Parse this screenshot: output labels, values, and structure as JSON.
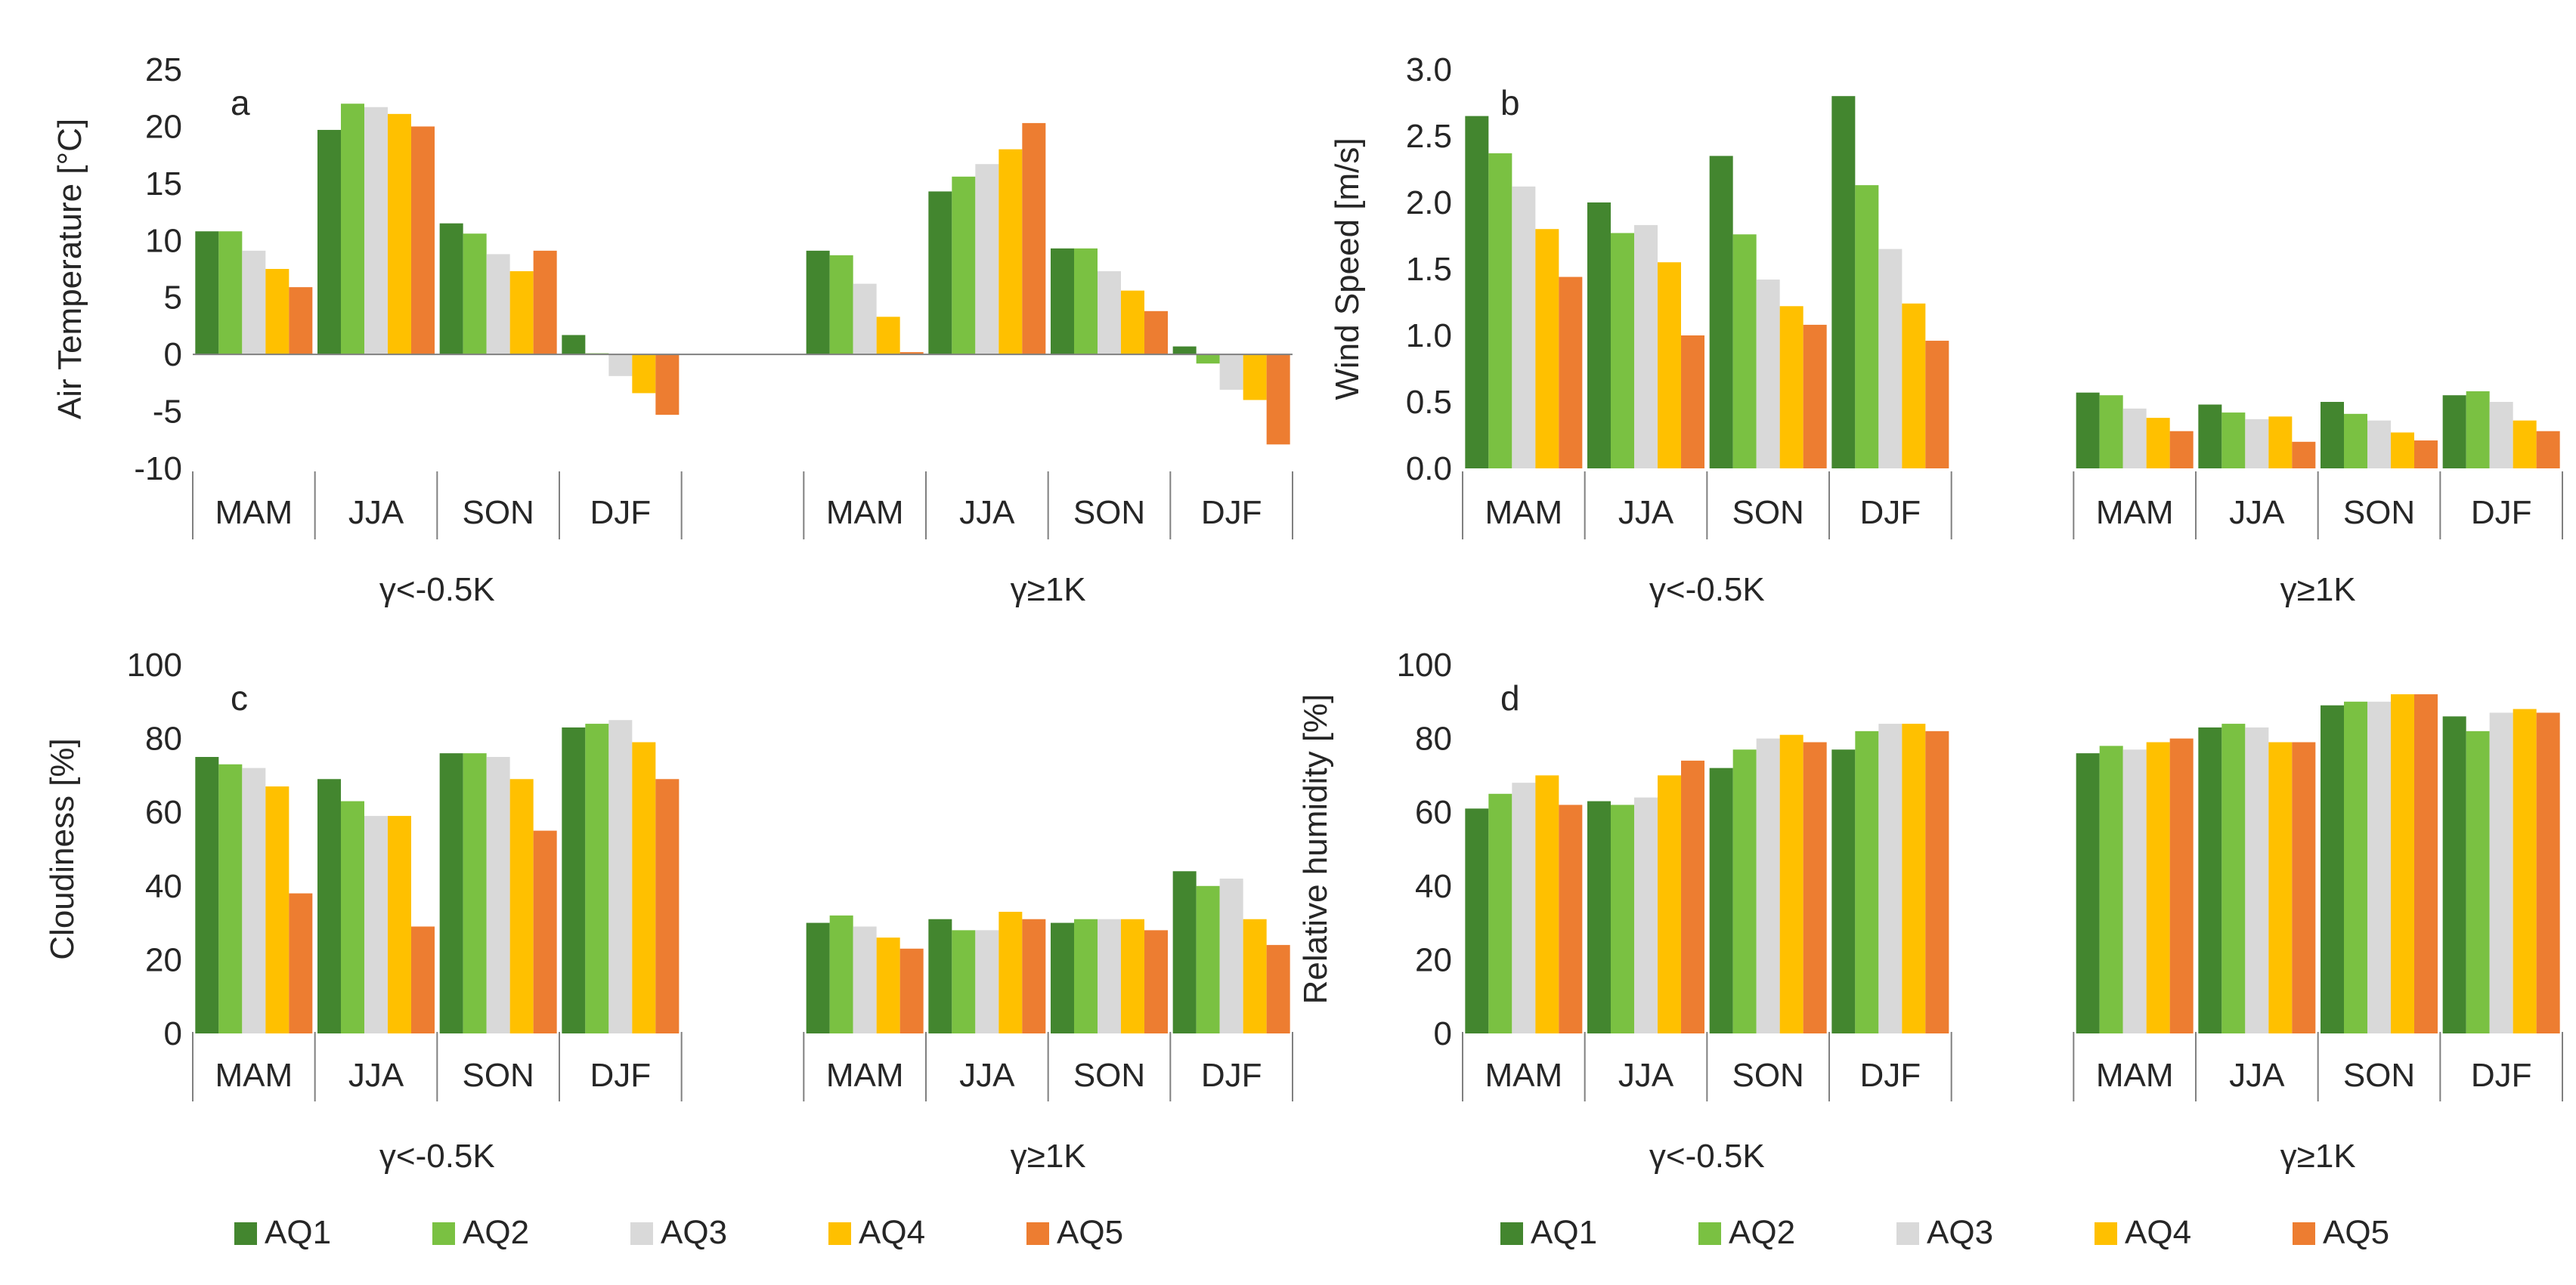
{
  "figure": {
    "groups": [
      "γ<-0.5K",
      "γ≥1K"
    ],
    "seasons": [
      "MAM",
      "JJA",
      "SON",
      "DJF"
    ],
    "series_names": [
      "AQ1",
      "AQ2",
      "AQ3",
      "AQ4",
      "AQ5"
    ],
    "colors": {
      "AQ1": "#43862f",
      "AQ2": "#7ac142",
      "AQ3": "#d9d9d9",
      "AQ4": "#ffc000",
      "AQ5": "#ed7d31",
      "axis": "#808080",
      "text": "#262626"
    },
    "legends": [
      {
        "items": [
          "AQ1",
          "AQ2",
          "AQ3",
          "AQ4",
          "AQ5"
        ]
      },
      {
        "items": [
          "AQ1",
          "AQ2",
          "AQ3",
          "AQ4",
          "AQ5"
        ]
      }
    ]
  },
  "chart_data": [
    {
      "id": "a",
      "type": "bar",
      "panel_label": "a",
      "ylabel": "Air Temperature [°C]",
      "ylim": [
        -10,
        25
      ],
      "yticks": [
        -10,
        -5,
        0,
        5,
        10,
        15,
        20,
        25
      ],
      "ytick_labels": [
        "-10",
        "-5",
        "0",
        "5",
        "10",
        "15",
        "20",
        "25"
      ],
      "categories": [
        "MAM",
        "JJA",
        "SON",
        "DJF",
        "MAM",
        "JJA",
        "SON",
        "DJF"
      ],
      "group_labels": [
        "γ<-0.5K",
        "γ≥1K"
      ],
      "series": [
        {
          "name": "AQ1",
          "values": [
            10.8,
            19.7,
            11.5,
            1.7,
            9.1,
            14.3,
            9.3,
            0.7
          ]
        },
        {
          "name": "AQ2",
          "values": [
            10.8,
            22.0,
            10.6,
            0.1,
            8.7,
            15.6,
            9.3,
            -0.8
          ]
        },
        {
          "name": "AQ3",
          "values": [
            9.1,
            21.7,
            8.8,
            -1.9,
            6.2,
            16.7,
            7.3,
            -3.1
          ]
        },
        {
          "name": "AQ4",
          "values": [
            7.5,
            21.1,
            7.3,
            -3.4,
            3.3,
            18.0,
            5.6,
            -4.0
          ]
        },
        {
          "name": "AQ5",
          "values": [
            5.9,
            20.0,
            9.1,
            -5.3,
            0.2,
            20.3,
            3.8,
            -7.9
          ]
        }
      ]
    },
    {
      "id": "b",
      "type": "bar",
      "panel_label": "b",
      "ylabel": "Wind Speed [m/s]",
      "ylim": [
        0,
        3
      ],
      "yticks": [
        0,
        0.5,
        1,
        1.5,
        2,
        2.5,
        3
      ],
      "ytick_labels": [
        "0.0",
        "0.5",
        "1.0",
        "1.5",
        "2.0",
        "2.5",
        "3.0"
      ],
      "categories": [
        "MAM",
        "JJA",
        "SON",
        "DJF",
        "MAM",
        "JJA",
        "SON",
        "DJF"
      ],
      "group_labels": [
        "γ<-0.5K",
        "γ≥1K"
      ],
      "series": [
        {
          "name": "AQ1",
          "values": [
            2.65,
            2.0,
            2.35,
            2.8,
            0.57,
            0.48,
            0.5,
            0.55
          ]
        },
        {
          "name": "AQ2",
          "values": [
            2.37,
            1.77,
            1.76,
            2.13,
            0.55,
            0.42,
            0.41,
            0.58
          ]
        },
        {
          "name": "AQ3",
          "values": [
            2.12,
            1.83,
            1.42,
            1.65,
            0.45,
            0.37,
            0.36,
            0.5
          ]
        },
        {
          "name": "AQ4",
          "values": [
            1.8,
            1.55,
            1.22,
            1.24,
            0.38,
            0.39,
            0.27,
            0.36
          ]
        },
        {
          "name": "AQ5",
          "values": [
            1.44,
            1.0,
            1.08,
            0.96,
            0.28,
            0.2,
            0.21,
            0.28
          ]
        }
      ]
    },
    {
      "id": "c",
      "type": "bar",
      "panel_label": "c",
      "ylabel": "Cloudiness [%]",
      "ylim": [
        0,
        100
      ],
      "yticks": [
        0,
        20,
        40,
        60,
        80,
        100
      ],
      "ytick_labels": [
        "0",
        "20",
        "40",
        "60",
        "80",
        "100"
      ],
      "categories": [
        "MAM",
        "JJA",
        "SON",
        "DJF",
        "MAM",
        "JJA",
        "SON",
        "DJF"
      ],
      "group_labels": [
        "γ<-0.5K",
        "γ≥1K"
      ],
      "series": [
        {
          "name": "AQ1",
          "values": [
            75,
            69,
            76,
            83,
            30,
            31,
            30,
            44
          ]
        },
        {
          "name": "AQ2",
          "values": [
            73,
            63,
            76,
            84,
            32,
            28,
            31,
            40
          ]
        },
        {
          "name": "AQ3",
          "values": [
            72,
            59,
            75,
            85,
            29,
            28,
            31,
            42
          ]
        },
        {
          "name": "AQ4",
          "values": [
            67,
            59,
            69,
            79,
            26,
            33,
            31,
            31
          ]
        },
        {
          "name": "AQ5",
          "values": [
            38,
            29,
            55,
            69,
            23,
            31,
            28,
            24
          ]
        }
      ]
    },
    {
      "id": "d",
      "type": "bar",
      "panel_label": "d",
      "ylabel": "Relative humidity [%]",
      "ylim": [
        0,
        100
      ],
      "yticks": [
        0,
        20,
        40,
        60,
        80,
        100
      ],
      "ytick_labels": [
        "0",
        "20",
        "40",
        "60",
        "80",
        "100"
      ],
      "categories": [
        "MAM",
        "JJA",
        "SON",
        "DJF",
        "MAM",
        "JJA",
        "SON",
        "DJF"
      ],
      "group_labels": [
        "γ<-0.5K",
        "γ≥1K"
      ],
      "series": [
        {
          "name": "AQ1",
          "values": [
            61,
            63,
            72,
            77,
            76,
            83,
            89,
            86
          ]
        },
        {
          "name": "AQ2",
          "values": [
            65,
            62,
            77,
            82,
            78,
            84,
            90,
            82
          ]
        },
        {
          "name": "AQ3",
          "values": [
            68,
            64,
            80,
            84,
            77,
            83,
            90,
            87
          ]
        },
        {
          "name": "AQ4",
          "values": [
            70,
            70,
            81,
            84,
            79,
            79,
            92,
            88
          ]
        },
        {
          "name": "AQ5",
          "values": [
            62,
            74,
            79,
            82,
            80,
            79,
            92,
            87
          ]
        }
      ]
    }
  ]
}
